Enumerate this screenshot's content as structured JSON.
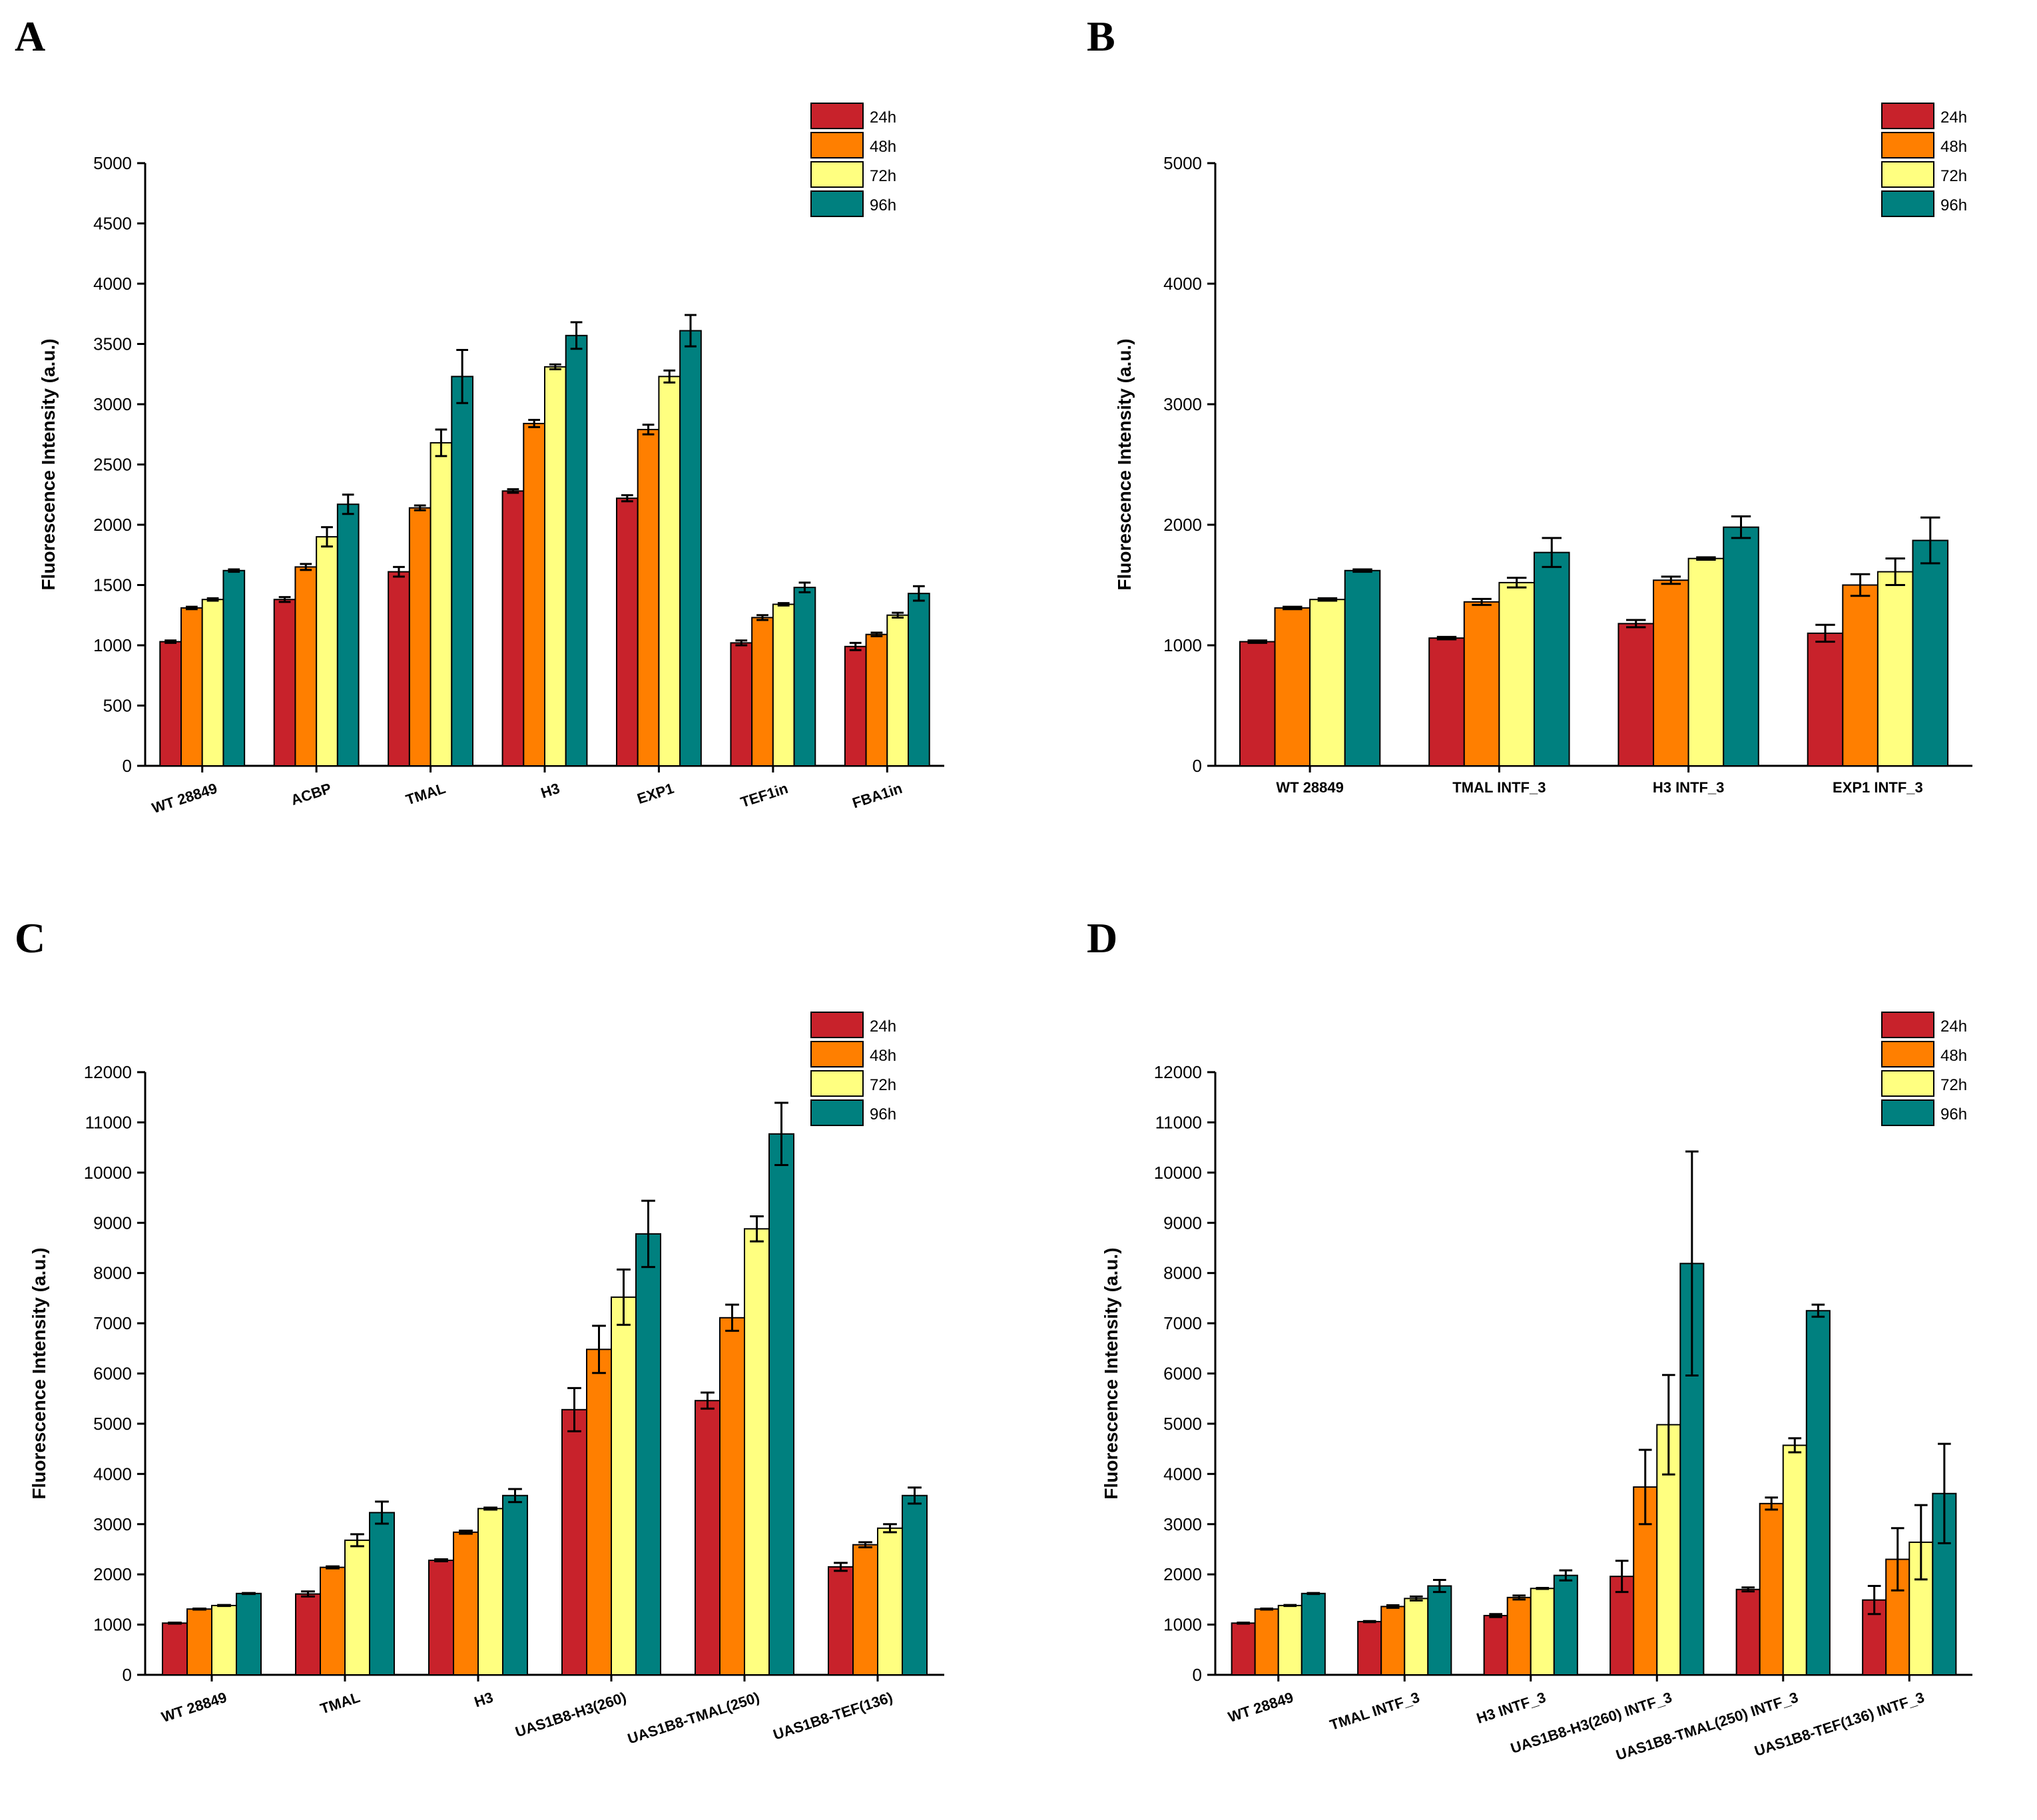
{
  "colors": {
    "24h": "#c8222b",
    "48h": "#ff7f00",
    "72h": "#ffff80",
    "96h": "#00807f"
  },
  "chart_data": [
    {
      "panel": "A",
      "type": "bar",
      "ylabel": "Fluorescence Intensity (a.u.)",
      "ylim": [
        0,
        5000
      ],
      "yticks": [
        0,
        500,
        1000,
        1500,
        2000,
        2500,
        3000,
        3500,
        4000,
        4500,
        5000
      ],
      "legend": [
        "24h",
        "48h",
        "72h",
        "96h"
      ],
      "categories": [
        "WT 28849",
        "ACBP",
        "TMAL",
        "H3",
        "EXP1",
        "TEF1in",
        "FBA1in"
      ],
      "series": [
        {
          "name": "24h",
          "values": [
            1030,
            1380,
            1610,
            2280,
            2220,
            1020,
            990
          ],
          "errors": [
            10,
            20,
            40,
            15,
            25,
            20,
            30
          ]
        },
        {
          "name": "48h",
          "values": [
            1310,
            1650,
            2140,
            2840,
            2790,
            1230,
            1090
          ],
          "errors": [
            10,
            25,
            20,
            30,
            40,
            20,
            15
          ]
        },
        {
          "name": "72h",
          "values": [
            1380,
            1900,
            2680,
            3310,
            3230,
            1340,
            1250
          ],
          "errors": [
            10,
            80,
            110,
            20,
            50,
            10,
            20
          ]
        },
        {
          "name": "96h",
          "values": [
            1620,
            2170,
            3230,
            3570,
            3610,
            1480,
            1430
          ],
          "errors": [
            10,
            80,
            220,
            110,
            130,
            40,
            60
          ]
        }
      ]
    },
    {
      "panel": "B",
      "type": "bar",
      "ylabel": "Fluorescence Intensity (a.u.)",
      "ylim": [
        0,
        5000
      ],
      "yticks": [
        0,
        1000,
        2000,
        3000,
        4000,
        5000
      ],
      "legend": [
        "24h",
        "48h",
        "72h",
        "96h"
      ],
      "categories": [
        "WT 28849",
        "TMAL INTF_3",
        "H3 INTF_3",
        "EXP1 INTF_3"
      ],
      "series": [
        {
          "name": "24h",
          "values": [
            1030,
            1060,
            1180,
            1100
          ],
          "errors": [
            10,
            10,
            30,
            70
          ]
        },
        {
          "name": "48h",
          "values": [
            1310,
            1360,
            1540,
            1500
          ],
          "errors": [
            10,
            25,
            30,
            90
          ]
        },
        {
          "name": "72h",
          "values": [
            1380,
            1520,
            1720,
            1610
          ],
          "errors": [
            10,
            40,
            10,
            110
          ]
        },
        {
          "name": "96h",
          "values": [
            1620,
            1770,
            1980,
            1870
          ],
          "errors": [
            10,
            120,
            90,
            190
          ]
        }
      ]
    },
    {
      "panel": "C",
      "type": "bar",
      "ylabel": "Fluorescence Intensity (a.u.)",
      "ylim": [
        0,
        12000
      ],
      "yticks": [
        0,
        1000,
        2000,
        3000,
        4000,
        5000,
        6000,
        7000,
        8000,
        9000,
        10000,
        11000,
        12000
      ],
      "legend": [
        "24h",
        "48h",
        "72h",
        "96h"
      ],
      "categories": [
        "WT 28849",
        "TMAL",
        "H3",
        "UAS1B8-H3(260)",
        "UAS1B8-TMAL(250)",
        "UAS1B8-TEF(136)"
      ],
      "series": [
        {
          "name": "24h",
          "values": [
            1030,
            1610,
            2280,
            5280,
            5460,
            2150
          ],
          "errors": [
            10,
            50,
            20,
            430,
            160,
            80
          ]
        },
        {
          "name": "48h",
          "values": [
            1310,
            2140,
            2840,
            6480,
            7110,
            2590
          ],
          "errors": [
            10,
            20,
            30,
            470,
            260,
            50
          ]
        },
        {
          "name": "72h",
          "values": [
            1380,
            2680,
            3310,
            7520,
            8880,
            2920
          ],
          "errors": [
            10,
            120,
            20,
            550,
            250,
            80
          ]
        },
        {
          "name": "96h",
          "values": [
            1620,
            3230,
            3570,
            8780,
            10770,
            3570
          ],
          "errors": [
            10,
            220,
            130,
            660,
            620,
            160
          ]
        }
      ]
    },
    {
      "panel": "D",
      "type": "bar",
      "ylabel": "Fluorescence Intensity (a.u.)",
      "ylim": [
        0,
        12000
      ],
      "yticks": [
        0,
        1000,
        2000,
        3000,
        4000,
        5000,
        6000,
        7000,
        8000,
        9000,
        10000,
        11000,
        12000
      ],
      "legend": [
        "24h",
        "48h",
        "72h",
        "96h"
      ],
      "categories": [
        "WT 28849",
        "TMAL INTF_3",
        "H3 INTF_3",
        "UAS1B8-H3(260) INTF_3",
        "UAS1B8-TMAL(250) INTF_3",
        "UAS1B8-TEF(136) INTF_3"
      ],
      "series": [
        {
          "name": "24h",
          "values": [
            1030,
            1060,
            1180,
            1960,
            1700,
            1490
          ],
          "errors": [
            10,
            10,
            30,
            310,
            40,
            280
          ]
        },
        {
          "name": "48h",
          "values": [
            1310,
            1360,
            1540,
            3740,
            3410,
            2300
          ],
          "errors": [
            10,
            25,
            40,
            740,
            120,
            620
          ]
        },
        {
          "name": "72h",
          "values": [
            1380,
            1520,
            1720,
            4980,
            4570,
            2640
          ],
          "errors": [
            10,
            40,
            10,
            990,
            140,
            740
          ]
        },
        {
          "name": "96h",
          "values": [
            1620,
            1770,
            1980,
            8190,
            7250,
            3610
          ],
          "errors": [
            10,
            120,
            100,
            2230,
            120,
            990
          ]
        }
      ]
    }
  ]
}
